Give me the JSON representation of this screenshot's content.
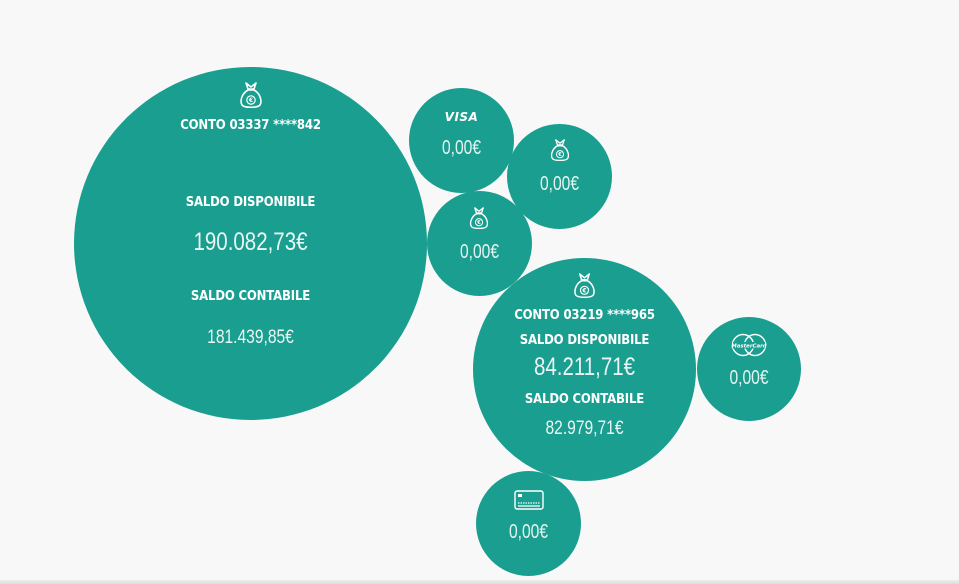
{
  "accounts": [
    {
      "title": "CONTO 03337 ****842",
      "available_label": "SALDO DISPONIBILE",
      "available_value": "190.082,73€",
      "book_label": "SALDO CONTABILE",
      "book_value": "181.439,85€",
      "icon": "money-bag-icon"
    },
    {
      "title": "CONTO 03219 ****965",
      "available_label": "SALDO DISPONIBILE",
      "available_value": "84.211,71€",
      "book_label": "SALDO CONTABILE",
      "book_value": "82.979,71€",
      "icon": "money-bag-icon"
    }
  ],
  "small_items": [
    {
      "icon": "visa-icon",
      "brand_text": "VISA",
      "value": "0,00€"
    },
    {
      "icon": "money-bag-icon",
      "value": "0,00€"
    },
    {
      "icon": "money-bag-icon",
      "value": "0,00€"
    },
    {
      "icon": "mastercard-icon",
      "brand_text": "MasterCard",
      "value": "0,00€"
    },
    {
      "icon": "credit-card-icon",
      "value": "0,00€"
    }
  ],
  "colors": {
    "bubble": "#1a9e90",
    "background": "#f8f8f9",
    "text": "#ffffff"
  }
}
